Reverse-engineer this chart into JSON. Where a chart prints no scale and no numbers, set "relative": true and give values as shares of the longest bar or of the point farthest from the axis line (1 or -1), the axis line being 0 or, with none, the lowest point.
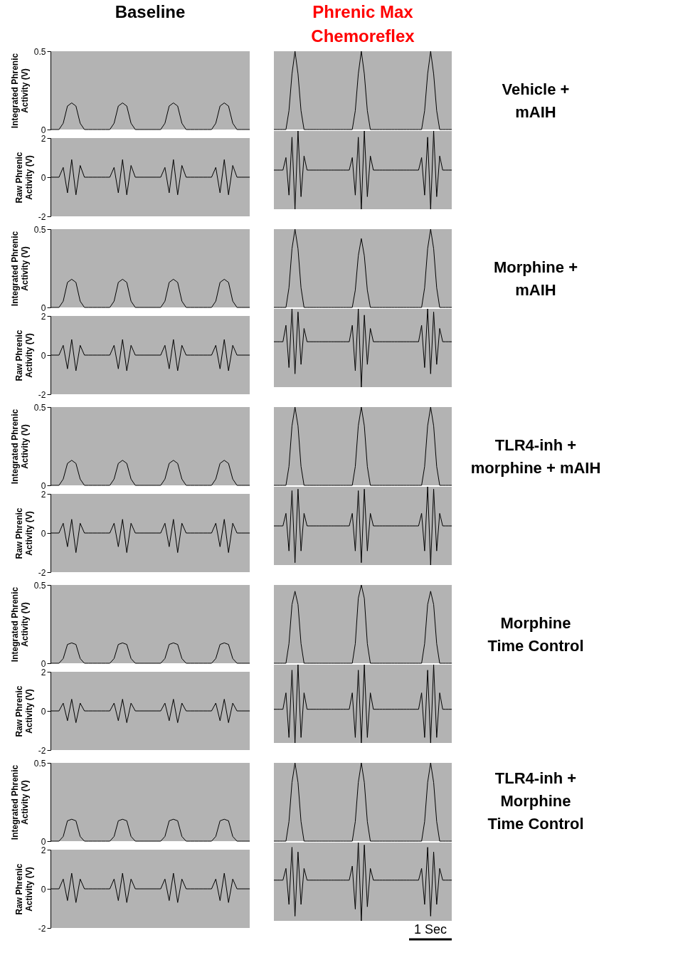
{
  "chart_data": [
    {
      "type": "line",
      "title": "Baseline",
      "ylabel": "Integrated Phrenic\nActivity (V)",
      "categories": [
        null,
        null,
        null,
        null,
        null,
        null,
        null,
        null,
        null,
        null,
        null,
        null,
        null,
        null,
        null,
        null,
        null,
        null,
        null,
        null,
        null,
        null,
        null,
        null,
        null,
        null,
        null,
        null,
        null,
        null,
        null,
        null,
        null,
        null,
        null,
        null,
        null,
        null,
        null,
        null,
        null,
        null,
        null,
        null,
        null,
        null,
        null,
        null
      ],
      "series": [
        {
          "color": "#000000",
          "values": [
            0,
            0,
            0,
            0.04,
            0.15,
            0.17,
            0.15,
            0.04,
            0,
            0,
            0,
            0,
            0,
            0,
            0,
            0.04,
            0.15,
            0.17,
            0.15,
            0.04,
            0,
            0,
            0,
            0,
            0,
            0,
            0,
            0.04,
            0.15,
            0.17,
            0.15,
            0.04,
            0,
            0,
            0,
            0,
            0,
            0,
            0,
            0.04,
            0.15,
            0.17,
            0.15,
            0.04,
            0,
            0,
            0,
            0
          ]
        }
      ],
      "ylim": [
        0,
        0.5
      ],
      "yticks": [
        0,
        0.5
      ],
      "tick_labels": "y"
    },
    {
      "type": "line",
      "relative": true,
      "title": "Phrenic Max\nChemoreflex",
      "annotations": [
        "Vehicle +\nmAIH"
      ],
      "categories": [
        null,
        null,
        null,
        null,
        null,
        null,
        null,
        null,
        null,
        null,
        null,
        null,
        null,
        null,
        null,
        null,
        null,
        null,
        null,
        null,
        null,
        null,
        null,
        null,
        null,
        null,
        null,
        null,
        null,
        null,
        null,
        null,
        null,
        null,
        null,
        null,
        null,
        null,
        null,
        null,
        null,
        null,
        null,
        null,
        null,
        null,
        null,
        null,
        null,
        null,
        null,
        null,
        null,
        null,
        null,
        null,
        null,
        null,
        null,
        null
      ],
      "series": [
        {
          "color": "#000000",
          "values": [
            0,
            0,
            0,
            0,
            0,
            0.24,
            0.71,
            1,
            0.71,
            0.24,
            0,
            0,
            0,
            0,
            0,
            0,
            0,
            0,
            0,
            0,
            0,
            0,
            0,
            0,
            0,
            0,
            0,
            0.24,
            0.71,
            1,
            0.71,
            0.24,
            0,
            0,
            0,
            0,
            0,
            0,
            0,
            0,
            0,
            0,
            0,
            0,
            0,
            0,
            0,
            0,
            0,
            0,
            0.24,
            0.71,
            1,
            0.71,
            0.24,
            0,
            0,
            0,
            0,
            0
          ]
        }
      ]
    },
    {
      "type": "line",
      "ylabel": "Raw Phrenic\nActivity (V)",
      "categories": [
        null,
        null,
        null,
        null,
        null,
        null,
        null,
        null,
        null,
        null,
        null,
        null,
        null,
        null,
        null,
        null,
        null,
        null,
        null,
        null,
        null,
        null,
        null,
        null,
        null,
        null,
        null,
        null,
        null,
        null,
        null,
        null,
        null,
        null,
        null,
        null,
        null,
        null,
        null,
        null,
        null,
        null,
        null,
        null,
        null,
        null,
        null,
        null
      ],
      "series": [
        {
          "color": "#000000",
          "values": [
            0,
            0,
            0,
            0.5,
            -0.8,
            0.9,
            -0.9,
            0.6,
            0,
            0,
            0,
            0,
            0,
            0,
            0,
            0.5,
            -0.8,
            0.9,
            -0.9,
            0.6,
            0,
            0,
            0,
            0,
            0,
            0,
            0,
            0.5,
            -0.8,
            0.9,
            -0.9,
            0.6,
            0,
            0,
            0,
            0,
            0,
            0,
            0,
            0.5,
            -0.8,
            0.9,
            -0.9,
            0.6,
            0,
            0,
            0,
            0
          ]
        }
      ],
      "ylim": [
        -2,
        2
      ],
      "yticks": [
        -2,
        0,
        2
      ],
      "tick_labels": "y"
    },
    {
      "type": "line",
      "relative": true,
      "categories": [
        null,
        null,
        null,
        null,
        null,
        null,
        null,
        null,
        null,
        null,
        null,
        null,
        null,
        null,
        null,
        null,
        null,
        null,
        null,
        null,
        null,
        null,
        null,
        null,
        null,
        null,
        null,
        null,
        null,
        null,
        null,
        null,
        null,
        null,
        null,
        null,
        null,
        null,
        null,
        null,
        null,
        null,
        null,
        null,
        null,
        null,
        null,
        null,
        null,
        null,
        null,
        null,
        null,
        null,
        null,
        null,
        null,
        null,
        null,
        null
      ],
      "series": [
        {
          "color": "#000000",
          "values": [
            0.5,
            0.5,
            0.5,
            0.5,
            0.66,
            0.18,
            0.92,
            0,
            1,
            0.16,
            0.68,
            0.5,
            0.5,
            0.5,
            0.5,
            0.5,
            0.5,
            0.5,
            0.5,
            0.5,
            0.5,
            0.5,
            0.5,
            0.5,
            0.5,
            0.5,
            0.66,
            0.18,
            0.92,
            0,
            1,
            0.16,
            0.68,
            0.5,
            0.5,
            0.5,
            0.5,
            0.5,
            0.5,
            0.5,
            0.5,
            0.5,
            0.5,
            0.5,
            0.5,
            0.5,
            0.5,
            0.5,
            0.5,
            0.66,
            0.18,
            0.92,
            0,
            1,
            0.16,
            0.68,
            0.5,
            0.5,
            0.5,
            0.5
          ]
        }
      ]
    },
    {
      "type": "line",
      "ylabel": "Integrated Phrenic\nActivity (V)",
      "categories": [
        null,
        null,
        null,
        null,
        null,
        null,
        null,
        null,
        null,
        null,
        null,
        null,
        null,
        null,
        null,
        null,
        null,
        null,
        null,
        null,
        null,
        null,
        null,
        null,
        null,
        null,
        null,
        null,
        null,
        null,
        null,
        null,
        null,
        null,
        null,
        null,
        null,
        null,
        null,
        null,
        null,
        null,
        null,
        null,
        null,
        null,
        null,
        null
      ],
      "series": [
        {
          "color": "#000000",
          "values": [
            0,
            0,
            0,
            0.04,
            0.16,
            0.18,
            0.16,
            0.04,
            0,
            0,
            0,
            0,
            0,
            0,
            0,
            0.04,
            0.16,
            0.18,
            0.16,
            0.04,
            0,
            0,
            0,
            0,
            0,
            0,
            0,
            0.04,
            0.16,
            0.18,
            0.16,
            0.04,
            0,
            0,
            0,
            0,
            0,
            0,
            0,
            0.04,
            0.16,
            0.18,
            0.16,
            0.04,
            0,
            0,
            0,
            0
          ]
        }
      ],
      "ylim": [
        0,
        0.5
      ],
      "yticks": [
        0,
        0.5
      ],
      "tick_labels": "y"
    },
    {
      "type": "line",
      "relative": true,
      "annotations": [
        "Morphine +\nmAIH"
      ],
      "categories": [
        null,
        null,
        null,
        null,
        null,
        null,
        null,
        null,
        null,
        null,
        null,
        null,
        null,
        null,
        null,
        null,
        null,
        null,
        null,
        null,
        null,
        null,
        null,
        null,
        null,
        null,
        null,
        null,
        null,
        null,
        null,
        null,
        null,
        null,
        null,
        null,
        null,
        null,
        null,
        null,
        null,
        null,
        null,
        null,
        null,
        null,
        null,
        null,
        null,
        null,
        null,
        null,
        null,
        null,
        null,
        null,
        null,
        null,
        null,
        null
      ],
      "series": [
        {
          "color": "#000000",
          "values": [
            0,
            0,
            0,
            0,
            0,
            0.25,
            0.75,
            1,
            0.75,
            0.25,
            0,
            0,
            0,
            0,
            0,
            0,
            0,
            0,
            0,
            0,
            0,
            0,
            0,
            0,
            0,
            0,
            0,
            0.22,
            0.66,
            0.88,
            0.66,
            0.22,
            0,
            0,
            0,
            0,
            0,
            0,
            0,
            0,
            0,
            0,
            0,
            0,
            0,
            0,
            0,
            0,
            0,
            0,
            0.25,
            0.75,
            1,
            0.75,
            0.25,
            0,
            0,
            0,
            0,
            0
          ]
        }
      ]
    },
    {
      "type": "line",
      "ylabel": "Raw Phrenic\nActivity (V)",
      "categories": [
        null,
        null,
        null,
        null,
        null,
        null,
        null,
        null,
        null,
        null,
        null,
        null,
        null,
        null,
        null,
        null,
        null,
        null,
        null,
        null,
        null,
        null,
        null,
        null,
        null,
        null,
        null,
        null,
        null,
        null,
        null,
        null,
        null,
        null,
        null,
        null,
        null,
        null,
        null,
        null,
        null,
        null,
        null,
        null,
        null,
        null,
        null,
        null
      ],
      "series": [
        {
          "color": "#000000",
          "values": [
            0,
            0,
            0,
            0.5,
            -0.7,
            0.8,
            -0.8,
            0.5,
            0,
            0,
            0,
            0,
            0,
            0,
            0,
            0.5,
            -0.7,
            0.8,
            -0.8,
            0.5,
            0,
            0,
            0,
            0,
            0,
            0,
            0,
            0.5,
            -0.7,
            0.8,
            -0.8,
            0.5,
            0,
            0,
            0,
            0,
            0,
            0,
            0,
            0.5,
            -0.7,
            0.8,
            -0.8,
            0.5,
            0,
            0,
            0,
            0
          ]
        }
      ],
      "ylim": [
        -2,
        2
      ],
      "yticks": [
        -2,
        0,
        2
      ],
      "tick_labels": "y"
    },
    {
      "type": "line",
      "relative": true,
      "categories": [
        null,
        null,
        null,
        null,
        null,
        null,
        null,
        null,
        null,
        null,
        null,
        null,
        null,
        null,
        null,
        null,
        null,
        null,
        null,
        null,
        null,
        null,
        null,
        null,
        null,
        null,
        null,
        null,
        null,
        null,
        null,
        null,
        null,
        null,
        null,
        null,
        null,
        null,
        null,
        null,
        null,
        null,
        null,
        null,
        null,
        null,
        null,
        null,
        null,
        null,
        null,
        null,
        null,
        null,
        null,
        null,
        null,
        null,
        null,
        null
      ],
      "series": [
        {
          "color": "#000000",
          "values": [
            0.58,
            0.58,
            0.58,
            0.58,
            0.79,
            0.25,
            1,
            0.17,
            0.96,
            0.29,
            0.75,
            0.58,
            0.58,
            0.58,
            0.58,
            0.58,
            0.58,
            0.58,
            0.58,
            0.58,
            0.58,
            0.58,
            0.58,
            0.58,
            0.58,
            0.58,
            0.79,
            0.21,
            1,
            0,
            0.92,
            0.29,
            0.75,
            0.58,
            0.58,
            0.58,
            0.58,
            0.58,
            0.58,
            0.58,
            0.58,
            0.58,
            0.58,
            0.58,
            0.58,
            0.58,
            0.58,
            0.58,
            0.58,
            0.79,
            0.25,
            1,
            0.17,
            0.96,
            0.29,
            0.75,
            0.58,
            0.58,
            0.58,
            0.58
          ]
        }
      ]
    },
    {
      "type": "line",
      "ylabel": "Integrated Phrenic\nActivity (V)",
      "categories": [
        null,
        null,
        null,
        null,
        null,
        null,
        null,
        null,
        null,
        null,
        null,
        null,
        null,
        null,
        null,
        null,
        null,
        null,
        null,
        null,
        null,
        null,
        null,
        null,
        null,
        null,
        null,
        null,
        null,
        null,
        null,
        null,
        null,
        null,
        null,
        null,
        null,
        null,
        null,
        null,
        null,
        null,
        null,
        null,
        null,
        null,
        null,
        null
      ],
      "series": [
        {
          "color": "#000000",
          "values": [
            0,
            0,
            0,
            0.04,
            0.14,
            0.16,
            0.14,
            0.04,
            0,
            0,
            0,
            0,
            0,
            0,
            0,
            0.04,
            0.14,
            0.16,
            0.14,
            0.04,
            0,
            0,
            0,
            0,
            0,
            0,
            0,
            0.04,
            0.14,
            0.16,
            0.14,
            0.04,
            0,
            0,
            0,
            0,
            0,
            0,
            0,
            0.04,
            0.14,
            0.16,
            0.14,
            0.04,
            0,
            0,
            0,
            0
          ]
        }
      ],
      "ylim": [
        0,
        0.5
      ],
      "yticks": [
        0,
        0.5
      ],
      "tick_labels": "y"
    },
    {
      "type": "line",
      "relative": true,
      "annotations": [
        "TLR4-inh +\nmorphine + mAIH"
      ],
      "categories": [
        null,
        null,
        null,
        null,
        null,
        null,
        null,
        null,
        null,
        null,
        null,
        null,
        null,
        null,
        null,
        null,
        null,
        null,
        null,
        null,
        null,
        null,
        null,
        null,
        null,
        null,
        null,
        null,
        null,
        null,
        null,
        null,
        null,
        null,
        null,
        null,
        null,
        null,
        null,
        null,
        null,
        null,
        null,
        null,
        null,
        null,
        null,
        null,
        null,
        null,
        null,
        null,
        null,
        null,
        null,
        null,
        null,
        null,
        null,
        null
      ],
      "series": [
        {
          "color": "#000000",
          "values": [
            0,
            0,
            0,
            0,
            0,
            0.24,
            0.76,
            1,
            0.76,
            0.24,
            0,
            0,
            0,
            0,
            0,
            0,
            0,
            0,
            0,
            0,
            0,
            0,
            0,
            0,
            0,
            0,
            0,
            0.24,
            0.76,
            1,
            0.76,
            0.24,
            0,
            0,
            0,
            0,
            0,
            0,
            0,
            0,
            0,
            0,
            0,
            0,
            0,
            0,
            0,
            0,
            0,
            0,
            0.24,
            0.76,
            1,
            0.76,
            0.24,
            0,
            0,
            0,
            0,
            0
          ]
        }
      ]
    },
    {
      "type": "line",
      "ylabel": "Raw Phrenic\nActivity (V)",
      "categories": [
        null,
        null,
        null,
        null,
        null,
        null,
        null,
        null,
        null,
        null,
        null,
        null,
        null,
        null,
        null,
        null,
        null,
        null,
        null,
        null,
        null,
        null,
        null,
        null,
        null,
        null,
        null,
        null,
        null,
        null,
        null,
        null,
        null,
        null,
        null,
        null,
        null,
        null,
        null,
        null,
        null,
        null,
        null,
        null,
        null,
        null,
        null,
        null
      ],
      "series": [
        {
          "color": "#000000",
          "values": [
            0,
            0,
            0,
            0.5,
            -0.7,
            0.7,
            -1,
            0.5,
            0,
            0,
            0,
            0,
            0,
            0,
            0,
            0.5,
            -0.7,
            0.7,
            -1,
            0.5,
            0,
            0,
            0,
            0,
            0,
            0,
            0,
            0.5,
            -0.7,
            0.7,
            -1,
            0.5,
            0,
            0,
            0,
            0,
            0,
            0,
            0,
            0.5,
            -0.7,
            0.7,
            -1,
            0.5,
            0,
            0,
            0,
            0
          ]
        }
      ],
      "ylim": [
        -2,
        2
      ],
      "yticks": [
        -2,
        0,
        2
      ],
      "tick_labels": "y"
    },
    {
      "type": "line",
      "relative": true,
      "categories": [
        null,
        null,
        null,
        null,
        null,
        null,
        null,
        null,
        null,
        null,
        null,
        null,
        null,
        null,
        null,
        null,
        null,
        null,
        null,
        null,
        null,
        null,
        null,
        null,
        null,
        null,
        null,
        null,
        null,
        null,
        null,
        null,
        null,
        null,
        null,
        null,
        null,
        null,
        null,
        null,
        null,
        null,
        null,
        null,
        null,
        null,
        null,
        null,
        null,
        null,
        null,
        null,
        null,
        null,
        null,
        null,
        null,
        null,
        null,
        null
      ],
      "series": [
        {
          "color": "#000000",
          "values": [
            0.5,
            0.5,
            0.5,
            0.5,
            0.66,
            0.18,
            0.95,
            0.03,
            0.97,
            0.18,
            0.66,
            0.5,
            0.5,
            0.5,
            0.5,
            0.5,
            0.5,
            0.5,
            0.5,
            0.5,
            0.5,
            0.5,
            0.5,
            0.5,
            0.5,
            0.5,
            0.66,
            0.18,
            0.95,
            0.03,
            0.97,
            0.18,
            0.66,
            0.5,
            0.5,
            0.5,
            0.5,
            0.5,
            0.5,
            0.5,
            0.5,
            0.5,
            0.5,
            0.5,
            0.5,
            0.5,
            0.5,
            0.5,
            0.5,
            0.66,
            0.18,
            1,
            0,
            0.97,
            0.18,
            0.66,
            0.5,
            0.5,
            0.5,
            0.5
          ]
        }
      ]
    },
    {
      "type": "line",
      "ylabel": "Integrated Phrenic\nActivity (V)",
      "categories": [
        null,
        null,
        null,
        null,
        null,
        null,
        null,
        null,
        null,
        null,
        null,
        null,
        null,
        null,
        null,
        null,
        null,
        null,
        null,
        null,
        null,
        null,
        null,
        null,
        null,
        null,
        null,
        null,
        null,
        null,
        null,
        null,
        null,
        null,
        null,
        null,
        null,
        null,
        null,
        null,
        null,
        null,
        null,
        null,
        null,
        null,
        null,
        null
      ],
      "series": [
        {
          "color": "#000000",
          "values": [
            0,
            0,
            0,
            0.03,
            0.12,
            0.13,
            0.12,
            0.03,
            0,
            0,
            0,
            0,
            0,
            0,
            0,
            0.03,
            0.12,
            0.13,
            0.12,
            0.03,
            0,
            0,
            0,
            0,
            0,
            0,
            0,
            0.03,
            0.12,
            0.13,
            0.12,
            0.03,
            0,
            0,
            0,
            0,
            0,
            0,
            0,
            0.03,
            0.12,
            0.13,
            0.12,
            0.03,
            0,
            0,
            0,
            0
          ]
        }
      ],
      "ylim": [
        0,
        0.5
      ],
      "yticks": [
        0,
        0.5
      ],
      "tick_labels": "y"
    },
    {
      "type": "line",
      "relative": true,
      "annotations": [
        "Morphine\nTime Control"
      ],
      "categories": [
        null,
        null,
        null,
        null,
        null,
        null,
        null,
        null,
        null,
        null,
        null,
        null,
        null,
        null,
        null,
        null,
        null,
        null,
        null,
        null,
        null,
        null,
        null,
        null,
        null,
        null,
        null,
        null,
        null,
        null,
        null,
        null,
        null,
        null,
        null,
        null,
        null,
        null,
        null,
        null,
        null,
        null,
        null,
        null,
        null,
        null,
        null,
        null,
        null,
        null,
        null,
        null,
        null,
        null,
        null,
        null,
        null,
        null,
        null,
        null
      ],
      "series": [
        {
          "color": "#000000",
          "values": [
            0,
            0,
            0,
            0,
            0,
            0.25,
            0.75,
            0.92,
            0.75,
            0.25,
            0,
            0,
            0,
            0,
            0,
            0,
            0,
            0,
            0,
            0,
            0,
            0,
            0,
            0,
            0,
            0,
            0,
            0.25,
            0.83,
            1,
            0.83,
            0.25,
            0,
            0,
            0,
            0,
            0,
            0,
            0,
            0,
            0,
            0,
            0,
            0,
            0,
            0,
            0,
            0,
            0,
            0,
            0.25,
            0.75,
            0.92,
            0.75,
            0.25,
            0,
            0,
            0,
            0,
            0
          ]
        }
      ]
    },
    {
      "type": "line",
      "ylabel": "Raw Phrenic\nActivity (V)",
      "categories": [
        null,
        null,
        null,
        null,
        null,
        null,
        null,
        null,
        null,
        null,
        null,
        null,
        null,
        null,
        null,
        null,
        null,
        null,
        null,
        null,
        null,
        null,
        null,
        null,
        null,
        null,
        null,
        null,
        null,
        null,
        null,
        null,
        null,
        null,
        null,
        null,
        null,
        null,
        null,
        null,
        null,
        null,
        null,
        null,
        null,
        null,
        null,
        null
      ],
      "series": [
        {
          "color": "#000000",
          "values": [
            0,
            0,
            0,
            0.4,
            -0.5,
            0.6,
            -0.6,
            0.4,
            0,
            0,
            0,
            0,
            0,
            0,
            0,
            0.4,
            -0.5,
            0.6,
            -0.6,
            0.4,
            0,
            0,
            0,
            0,
            0,
            0,
            0,
            0.4,
            -0.5,
            0.6,
            -0.6,
            0.4,
            0,
            0,
            0,
            0,
            0,
            0,
            0,
            0.4,
            -0.5,
            0.6,
            -0.6,
            0.4,
            0,
            0,
            0,
            0
          ]
        }
      ],
      "ylim": [
        -2,
        2
      ],
      "yticks": [
        -2,
        0,
        2
      ],
      "tick_labels": "y"
    },
    {
      "type": "line",
      "relative": true,
      "categories": [
        null,
        null,
        null,
        null,
        null,
        null,
        null,
        null,
        null,
        null,
        null,
        null,
        null,
        null,
        null,
        null,
        null,
        null,
        null,
        null,
        null,
        null,
        null,
        null,
        null,
        null,
        null,
        null,
        null,
        null,
        null,
        null,
        null,
        null,
        null,
        null,
        null,
        null,
        null,
        null,
        null,
        null,
        null,
        null,
        null,
        null,
        null,
        null,
        null,
        null,
        null,
        null,
        null,
        null,
        null,
        null,
        null,
        null,
        null,
        null
      ],
      "series": [
        {
          "color": "#000000",
          "values": [
            0.43,
            0.43,
            0.43,
            0.43,
            0.64,
            0.07,
            0.93,
            0,
            1,
            0.07,
            0.64,
            0.43,
            0.43,
            0.43,
            0.43,
            0.43,
            0.43,
            0.43,
            0.43,
            0.43,
            0.43,
            0.43,
            0.43,
            0.43,
            0.43,
            0.43,
            0.64,
            0.07,
            0.93,
            0,
            1,
            0.07,
            0.64,
            0.43,
            0.43,
            0.43,
            0.43,
            0.43,
            0.43,
            0.43,
            0.43,
            0.43,
            0.43,
            0.43,
            0.43,
            0.43,
            0.43,
            0.43,
            0.43,
            0.64,
            0.07,
            0.93,
            0,
            1,
            0.07,
            0.64,
            0.43,
            0.43,
            0.43,
            0.43
          ]
        }
      ]
    },
    {
      "type": "line",
      "ylabel": "Integrated Phrenic\nActivity (V)",
      "categories": [
        null,
        null,
        null,
        null,
        null,
        null,
        null,
        null,
        null,
        null,
        null,
        null,
        null,
        null,
        null,
        null,
        null,
        null,
        null,
        null,
        null,
        null,
        null,
        null,
        null,
        null,
        null,
        null,
        null,
        null,
        null,
        null,
        null,
        null,
        null,
        null,
        null,
        null,
        null,
        null,
        null,
        null,
        null,
        null,
        null,
        null,
        null,
        null
      ],
      "series": [
        {
          "color": "#000000",
          "values": [
            0,
            0,
            0,
            0.03,
            0.13,
            0.14,
            0.13,
            0.03,
            0,
            0,
            0,
            0,
            0,
            0,
            0,
            0.03,
            0.13,
            0.14,
            0.13,
            0.03,
            0,
            0,
            0,
            0,
            0,
            0,
            0,
            0.03,
            0.13,
            0.14,
            0.13,
            0.03,
            0,
            0,
            0,
            0,
            0,
            0,
            0,
            0.03,
            0.13,
            0.14,
            0.13,
            0.03,
            0,
            0,
            0,
            0
          ]
        }
      ],
      "ylim": [
        0,
        0.5
      ],
      "yticks": [
        0,
        0.5
      ],
      "tick_labels": "y"
    },
    {
      "type": "line",
      "relative": true,
      "annotations": [
        "TLR4-inh +\nMorphine\nTime Control"
      ],
      "categories": [
        null,
        null,
        null,
        null,
        null,
        null,
        null,
        null,
        null,
        null,
        null,
        null,
        null,
        null,
        null,
        null,
        null,
        null,
        null,
        null,
        null,
        null,
        null,
        null,
        null,
        null,
        null,
        null,
        null,
        null,
        null,
        null,
        null,
        null,
        null,
        null,
        null,
        null,
        null,
        null,
        null,
        null,
        null,
        null,
        null,
        null,
        null,
        null,
        null,
        null,
        null,
        null,
        null,
        null,
        null,
        null,
        null,
        null,
        null,
        null
      ],
      "series": [
        {
          "color": "#000000",
          "values": [
            0,
            0,
            0,
            0,
            0,
            0.25,
            0.75,
            1,
            0.75,
            0.25,
            0,
            0,
            0,
            0,
            0,
            0,
            0,
            0,
            0,
            0,
            0,
            0,
            0,
            0,
            0,
            0,
            0,
            0.25,
            0.75,
            1,
            0.75,
            0.25,
            0,
            0,
            0,
            0,
            0,
            0,
            0,
            0,
            0,
            0,
            0,
            0,
            0,
            0,
            0,
            0,
            0,
            0,
            0.25,
            0.75,
            1,
            0.75,
            0.25,
            0,
            0,
            0,
            0,
            0
          ]
        }
      ]
    },
    {
      "type": "line",
      "ylabel": "Raw Phrenic\nActivity (V)",
      "categories": [
        null,
        null,
        null,
        null,
        null,
        null,
        null,
        null,
        null,
        null,
        null,
        null,
        null,
        null,
        null,
        null,
        null,
        null,
        null,
        null,
        null,
        null,
        null,
        null,
        null,
        null,
        null,
        null,
        null,
        null,
        null,
        null,
        null,
        null,
        null,
        null,
        null,
        null,
        null,
        null,
        null,
        null,
        null,
        null,
        null,
        null,
        null,
        null
      ],
      "series": [
        {
          "color": "#000000",
          "values": [
            0,
            0,
            0,
            0.5,
            -0.6,
            0.8,
            -0.7,
            0.5,
            0,
            0,
            0,
            0,
            0,
            0,
            0,
            0.5,
            -0.6,
            0.8,
            -0.7,
            0.5,
            0,
            0,
            0,
            0,
            0,
            0,
            0,
            0.5,
            -0.6,
            0.8,
            -0.7,
            0.5,
            0,
            0,
            0,
            0,
            0,
            0,
            0,
            0.5,
            -0.6,
            0.8,
            -0.7,
            0.5,
            0,
            0,
            0,
            0
          ]
        }
      ],
      "ylim": [
        -2,
        2
      ],
      "yticks": [
        -2,
        0,
        2
      ],
      "tick_labels": "y"
    },
    {
      "type": "line",
      "relative": true,
      "annotations": [
        "1 Sec"
      ],
      "categories": [
        null,
        null,
        null,
        null,
        null,
        null,
        null,
        null,
        null,
        null,
        null,
        null,
        null,
        null,
        null,
        null,
        null,
        null,
        null,
        null,
        null,
        null,
        null,
        null,
        null,
        null,
        null,
        null,
        null,
        null,
        null,
        null,
        null,
        null,
        null,
        null,
        null,
        null,
        null,
        null,
        null,
        null,
        null,
        null,
        null,
        null,
        null,
        null,
        null,
        null,
        null,
        null,
        null,
        null,
        null,
        null,
        null,
        null,
        null,
        null
      ],
      "series": [
        {
          "color": "#000000",
          "values": [
            0.52,
            0.52,
            0.52,
            0.52,
            0.67,
            0.21,
            0.94,
            0.06,
            0.88,
            0.21,
            0.67,
            0.52,
            0.52,
            0.52,
            0.52,
            0.52,
            0.52,
            0.52,
            0.52,
            0.52,
            0.52,
            0.52,
            0.52,
            0.52,
            0.52,
            0.52,
            0.7,
            0.15,
            1,
            0,
            0.97,
            0.18,
            0.67,
            0.52,
            0.52,
            0.52,
            0.52,
            0.52,
            0.52,
            0.52,
            0.52,
            0.52,
            0.52,
            0.52,
            0.52,
            0.52,
            0.52,
            0.52,
            0.52,
            0.67,
            0.21,
            0.94,
            0.06,
            0.88,
            0.21,
            0.67,
            0.52,
            0.52,
            0.52,
            0.52
          ]
        }
      ]
    }
  ]
}
